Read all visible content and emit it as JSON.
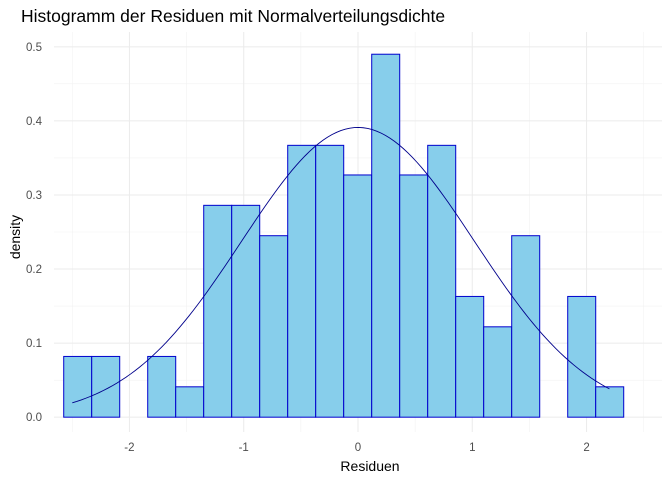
{
  "chart_data": {
    "type": "bar",
    "subtype": "histogram_with_density",
    "title": "Histogramm der Residuen mit Normalverteilungsdichte",
    "xlabel": "Residuen",
    "ylabel": "density",
    "xlim": [
      -2.66,
      2.66
    ],
    "ylim": [
      -0.02,
      0.52
    ],
    "x_ticks": [
      -2,
      -1,
      0,
      1,
      2
    ],
    "x_tick_labels": [
      "-2",
      "-1",
      "0",
      "1",
      "2"
    ],
    "y_ticks": [
      0.0,
      0.1,
      0.2,
      0.3,
      0.4,
      0.5
    ],
    "y_tick_labels": [
      "0.0",
      "0.1",
      "0.2",
      "0.3",
      "0.4",
      "0.5"
    ],
    "grid": true,
    "bin_width": 0.245,
    "bins": [
      {
        "x0": -2.575,
        "x1": -2.33,
        "density": 0.082
      },
      {
        "x0": -2.33,
        "x1": -2.085,
        "density": 0.082
      },
      {
        "x0": -2.085,
        "x1": -1.84,
        "density": 0.0
      },
      {
        "x0": -1.84,
        "x1": -1.595,
        "density": 0.082
      },
      {
        "x0": -1.595,
        "x1": -1.35,
        "density": 0.041
      },
      {
        "x0": -1.35,
        "x1": -1.105,
        "density": 0.286
      },
      {
        "x0": -1.105,
        "x1": -0.86,
        "density": 0.286
      },
      {
        "x0": -0.86,
        "x1": -0.615,
        "density": 0.245
      },
      {
        "x0": -0.615,
        "x1": -0.37,
        "density": 0.367
      },
      {
        "x0": -0.37,
        "x1": -0.125,
        "density": 0.367
      },
      {
        "x0": -0.125,
        "x1": 0.12,
        "density": 0.327
      },
      {
        "x0": 0.12,
        "x1": 0.365,
        "density": 0.49
      },
      {
        "x0": 0.365,
        "x1": 0.61,
        "density": 0.327
      },
      {
        "x0": 0.61,
        "x1": 0.855,
        "density": 0.367
      },
      {
        "x0": 0.855,
        "x1": 1.1,
        "density": 0.163
      },
      {
        "x0": 1.1,
        "x1": 1.345,
        "density": 0.122
      },
      {
        "x0": 1.345,
        "x1": 1.59,
        "density": 0.245
      },
      {
        "x0": 1.59,
        "x1": 1.835,
        "density": 0.0
      },
      {
        "x0": 1.835,
        "x1": 2.08,
        "density": 0.163
      },
      {
        "x0": 2.08,
        "x1": 2.325,
        "density": 0.041
      }
    ],
    "density_curve": {
      "distribution": "normal",
      "mean": 0.0,
      "sd": 1.02,
      "x_range": [
        -2.5,
        2.2
      ]
    },
    "colors": {
      "bar_fill": "#87ceeb",
      "bar_outline": "#0000cd",
      "curve": "#00008b"
    }
  }
}
